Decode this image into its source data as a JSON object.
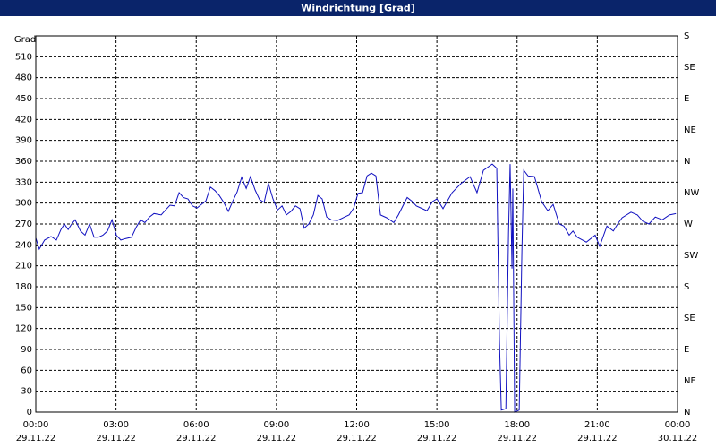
{
  "chart_data": {
    "type": "line",
    "title": "Windrichtung [Grad]",
    "y_label": "Grad",
    "color": "#1010c0",
    "grid": true,
    "xlim": [
      0,
      24
    ],
    "xticks": [
      {
        "value": 0,
        "label": "00:00"
      },
      {
        "value": 3,
        "label": "03:00"
      },
      {
        "value": 6,
        "label": "06:00"
      },
      {
        "value": 9,
        "label": "09:00"
      },
      {
        "value": 12,
        "label": "12:00"
      },
      {
        "value": 15,
        "label": "15:00"
      },
      {
        "value": 18,
        "label": "18:00"
      },
      {
        "value": 21,
        "label": "21:00"
      },
      {
        "value": 24,
        "label": "00:00"
      }
    ],
    "xtick_dates": [
      "29.11.22",
      "29.11.22",
      "29.11.22",
      "29.11.22",
      "29.11.22",
      "29.11.22",
      "29.11.22",
      "29.11.22",
      "30.11.22"
    ],
    "ylim": [
      0,
      540
    ],
    "yticks": [
      0,
      30,
      60,
      90,
      120,
      150,
      180,
      210,
      240,
      270,
      300,
      330,
      360,
      390,
      420,
      450,
      480,
      510
    ],
    "y2lim": [
      0,
      540
    ],
    "y2ticks": [
      {
        "value": 0,
        "label": "N"
      },
      {
        "value": 45,
        "label": "NE"
      },
      {
        "value": 90,
        "label": "E"
      },
      {
        "value": 135,
        "label": "SE"
      },
      {
        "value": 180,
        "label": "S"
      },
      {
        "value": 225,
        "label": "SW"
      },
      {
        "value": 270,
        "label": "W"
      },
      {
        "value": 315,
        "label": "NW"
      },
      {
        "value": 360,
        "label": "N"
      },
      {
        "value": 405,
        "label": "NE"
      },
      {
        "value": 450,
        "label": "E"
      },
      {
        "value": 495,
        "label": "SE"
      },
      {
        "value": 540,
        "label": "S"
      }
    ],
    "x": [
      0,
      0.13,
      0.33,
      0.57,
      0.77,
      0.94,
      1.07,
      1.21,
      1.34,
      1.47,
      1.67,
      1.84,
      2.01,
      2.18,
      2.34,
      2.51,
      2.68,
      2.85,
      3.01,
      3.18,
      3.35,
      3.58,
      3.75,
      3.92,
      4.08,
      4.25,
      4.42,
      4.69,
      4.85,
      5.02,
      5.19,
      5.36,
      5.52,
      5.69,
      5.86,
      6.03,
      6.19,
      6.36,
      6.53,
      6.7,
      6.86,
      7.03,
      7.2,
      7.37,
      7.53,
      7.7,
      7.87,
      8.03,
      8.2,
      8.37,
      8.54,
      8.7,
      8.87,
      9.04,
      9.21,
      9.37,
      9.54,
      9.71,
      9.88,
      10.04,
      10.21,
      10.38,
      10.55,
      10.71,
      10.88,
      11.05,
      11.28,
      11.55,
      11.72,
      11.89,
      12.05,
      12.22,
      12.39,
      12.55,
      12.72,
      12.89,
      13.12,
      13.39,
      13.56,
      13.73,
      13.89,
      14.06,
      14.23,
      14.4,
      14.63,
      14.83,
      15.0,
      15.23,
      15.57,
      15.9,
      16.24,
      16.5,
      16.74,
      17.07,
      17.24,
      17.34,
      17.41,
      17.58,
      17.68,
      17.74,
      17.81,
      17.84,
      17.91,
      18.08,
      18.18,
      18.25,
      18.41,
      18.65,
      18.92,
      19.15,
      19.35,
      19.58,
      19.75,
      19.95,
      20.09,
      20.25,
      20.59,
      20.92,
      21.09,
      21.36,
      21.6,
      21.76,
      21.93,
      22.26,
      22.5,
      22.7,
      22.93,
      23.17,
      23.43,
      23.7,
      23.94
    ],
    "values": [
      250,
      234,
      247,
      252,
      247,
      262,
      270,
      262,
      270,
      276,
      260,
      254,
      270,
      251,
      251,
      254,
      260,
      276,
      254,
      247,
      249,
      251,
      265,
      276,
      272,
      280,
      285,
      283,
      290,
      297,
      296,
      315,
      308,
      306,
      296,
      293,
      298,
      303,
      323,
      318,
      311,
      301,
      288,
      303,
      316,
      337,
      321,
      338,
      319,
      305,
      301,
      328,
      306,
      290,
      296,
      283,
      288,
      296,
      292,
      264,
      270,
      283,
      311,
      306,
      280,
      276,
      275,
      280,
      283,
      293,
      314,
      315,
      339,
      343,
      339,
      283,
      279,
      272,
      283,
      296,
      308,
      303,
      296,
      293,
      289,
      302,
      306,
      292,
      315,
      328,
      338,
      315,
      347,
      356,
      350,
      103,
      3,
      5,
      257,
      356,
      206,
      321,
      0,
      3,
      231,
      347,
      339,
      338,
      302,
      289,
      298,
      270,
      267,
      254,
      260,
      251,
      244,
      254,
      238,
      267,
      260,
      270,
      279,
      287,
      283,
      274,
      270,
      280,
      276,
      283,
      285
    ]
  }
}
